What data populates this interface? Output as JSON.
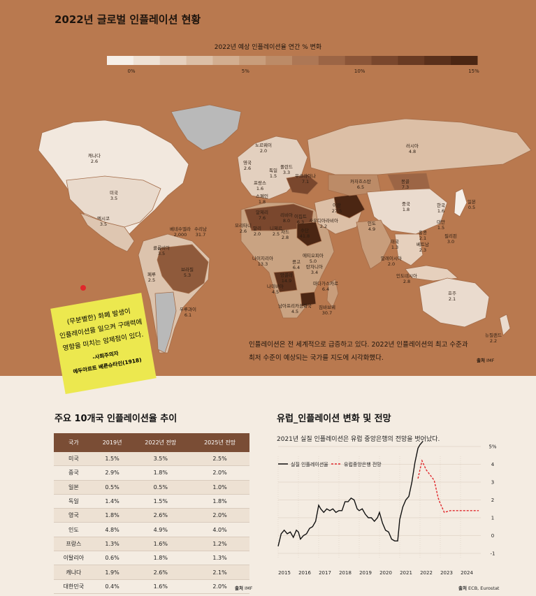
{
  "title": "2022년 글로벌 인플레이션 현황",
  "legend": {
    "title": "2022년 예상 인플레이션율 연간 % 변화",
    "ticks": [
      {
        "label": "0%",
        "v": 0
      },
      {
        "label": "5%",
        "v": 5
      },
      {
        "label": "10%",
        "v": 10
      },
      {
        "label": "15%",
        "v": 15
      }
    ],
    "colors": [
      "#f6efe8",
      "#efe1d4",
      "#e6d0bd",
      "#dcbfa6",
      "#d2ae90",
      "#c89d7b",
      "#bc8b67",
      "#ad7755",
      "#9c6545",
      "#8b5538",
      "#7a472d",
      "#6a3b23",
      "#5a301b",
      "#4b2613"
    ]
  },
  "map_labels": [
    {
      "name": "캐나다",
      "value": "2.6"
    },
    {
      "name": "미국",
      "value": "3.5"
    },
    {
      "name": "멕시코",
      "value": "3.5"
    },
    {
      "name": "베네수엘라",
      "value": "2,000"
    },
    {
      "name": "수리남",
      "value": "31.7"
    },
    {
      "name": "콜롬비아",
      "value": "3.5"
    },
    {
      "name": "페루",
      "value": "2.5"
    },
    {
      "name": "브라질",
      "value": "5.3"
    },
    {
      "name": "우루과이",
      "value": "6.1"
    },
    {
      "name": "노르웨이",
      "value": "2.0"
    },
    {
      "name": "영국",
      "value": "2.6"
    },
    {
      "name": "독일",
      "value": "1.5"
    },
    {
      "name": "폴란드",
      "value": "3.3"
    },
    {
      "name": "우크라이나",
      "value": "7.1"
    },
    {
      "name": "프랑스",
      "value": "1.6"
    },
    {
      "name": "스페인",
      "value": "1.8"
    },
    {
      "name": "모리타니",
      "value": "2.6"
    },
    {
      "name": "말리",
      "value": "2.0"
    },
    {
      "name": "니제르",
      "value": "2.5"
    },
    {
      "name": "알제리",
      "value": "7.6"
    },
    {
      "name": "리비아",
      "value": "8.0"
    },
    {
      "name": "이집트",
      "value": "6.3"
    },
    {
      "name": "차드",
      "value": "2.8"
    },
    {
      "name": "수단",
      "value": "41.8"
    },
    {
      "name": "사우디아라비아",
      "value": "2.2"
    },
    {
      "name": "이란",
      "value": "27.5"
    },
    {
      "name": "나이지리아",
      "value": "13.3"
    },
    {
      "name": "콩고",
      "value": "6.4"
    },
    {
      "name": "에티오피아",
      "value": "5.0"
    },
    {
      "name": "탄자니아",
      "value": "3.4"
    },
    {
      "name": "앙골라",
      "value": "14.9"
    },
    {
      "name": "나미비아",
      "value": "4.5"
    },
    {
      "name": "마다가스카르",
      "value": "6.4"
    },
    {
      "name": "남아프리카공화국",
      "value": "4.5"
    },
    {
      "name": "짐바브웨",
      "value": "30.7"
    },
    {
      "name": "러시아",
      "value": "4.8"
    },
    {
      "name": "카자흐스탄",
      "value": "6.5"
    },
    {
      "name": "몽골",
      "value": "7.3"
    },
    {
      "name": "중국",
      "value": "1.8"
    },
    {
      "name": "인도",
      "value": "4.9"
    },
    {
      "name": "한국",
      "value": "1.6"
    },
    {
      "name": "일본",
      "value": "0.5"
    },
    {
      "name": "대만",
      "value": "1.5"
    },
    {
      "name": "홍콩",
      "value": "2.1"
    },
    {
      "name": "필리핀",
      "value": "3.0"
    },
    {
      "name": "태국",
      "value": "1.3"
    },
    {
      "name": "베트남",
      "value": "2.3"
    },
    {
      "name": "말레이시아",
      "value": "2.0"
    },
    {
      "name": "인도네시아",
      "value": "2.8"
    },
    {
      "name": "호주",
      "value": "2.1"
    },
    {
      "name": "뉴질랜드",
      "value": "2.2"
    }
  ],
  "quote": {
    "lines": [
      "(무분별한) 화폐 발생이",
      "인플레이션을 일으켜 구매력에",
      "영향을 미치는 암제점이 있다."
    ],
    "author": "-사회주의자",
    "author2": "에두아르트 베른슈타인(1918)"
  },
  "caption": "인플레이션은 전 세계적으로 급증하고 있다. 2022년 인플레이션의 최고 수준과 최저 수준이 예상되는 국가를 지도에 시각화했다.",
  "source_map": {
    "label": "출처",
    "value": "IMF"
  },
  "table": {
    "title": "주요 10개국 인플레이션율 추이",
    "headers": [
      "국가",
      "2019년",
      "2022년 전망",
      "2025년 전망"
    ],
    "rows": [
      [
        "미국",
        "1.5%",
        "3.5%",
        "2.5%"
      ],
      [
        "중국",
        "2.9%",
        "1.8%",
        "2.0%"
      ],
      [
        "일본",
        "0.5%",
        "0.5%",
        "1.0%"
      ],
      [
        "독일",
        "1.4%",
        "1.5%",
        "1.8%"
      ],
      [
        "영국",
        "1.8%",
        "2.6%",
        "2.0%"
      ],
      [
        "인도",
        "4.8%",
        "4.9%",
        "4.0%"
      ],
      [
        "프랑스",
        "1.3%",
        "1.6%",
        "1.2%"
      ],
      [
        "이탈리아",
        "0.6%",
        "1.8%",
        "1.3%"
      ],
      [
        "캐나다",
        "1.9%",
        "2.6%",
        "2.1%"
      ],
      [
        "대한민국",
        "0.4%",
        "1.6%",
        "2.0%"
      ]
    ],
    "source": {
      "label": "출처",
      "value": "IMF"
    }
  },
  "chart_data": {
    "type": "line",
    "title": "유럽_인플레이션 변화 및 전망",
    "subtitle": "2021년 실질 인플레이션은 유럽 중앙은행의 전망을 벗어났다.",
    "x_ticks": [
      "2015",
      "2016",
      "2017",
      "2018",
      "2019",
      "2020",
      "2021",
      "2022",
      "2023",
      "2024"
    ],
    "y_ticks": [
      "5%",
      "4",
      "3",
      "2",
      "1",
      "0",
      "-1"
    ],
    "ylim": [
      -1,
      5
    ],
    "xlim": [
      2015,
      2025
    ],
    "series": [
      {
        "name": "실질 인플레이션율",
        "color": "#111111",
        "style": "solid",
        "x": [
          2015.0,
          2015.15,
          2015.3,
          2015.45,
          2015.6,
          2015.75,
          2015.9,
          2016.0,
          2016.1,
          2016.25,
          2016.4,
          2016.55,
          2016.7,
          2016.85,
          2017.0,
          2017.1,
          2017.25,
          2017.4,
          2017.55,
          2017.7,
          2017.85,
          2018.0,
          2018.15,
          2018.3,
          2018.45,
          2018.6,
          2018.75,
          2018.9,
          2019.0,
          2019.15,
          2019.3,
          2019.45,
          2019.6,
          2019.75,
          2019.9,
          2020.0,
          2020.15,
          2020.3,
          2020.45,
          2020.6,
          2020.75,
          2020.9,
          2021.0,
          2021.15,
          2021.3,
          2021.45,
          2021.6,
          2021.75,
          2021.9,
          2022.0,
          2022.15
        ],
        "y": [
          -0.6,
          0.1,
          0.3,
          0.1,
          0.2,
          -0.1,
          0.3,
          0.2,
          -0.2,
          0.0,
          0.1,
          0.4,
          0.5,
          0.8,
          1.7,
          1.5,
          1.3,
          1.5,
          1.4,
          1.5,
          1.3,
          1.4,
          1.4,
          1.9,
          1.9,
          2.1,
          2.0,
          1.5,
          1.4,
          1.5,
          1.2,
          1.0,
          1.0,
          0.8,
          1.0,
          1.3,
          0.7,
          0.3,
          0.2,
          -0.2,
          -0.3,
          -0.3,
          0.9,
          1.6,
          2.0,
          2.2,
          3.0,
          4.1,
          4.9,
          5.1,
          5.3
        ]
      },
      {
        "name": "유럽중앙은행 전망",
        "color": "#e0272b",
        "style": "dashed",
        "x": [
          2021.9,
          2022.1,
          2022.3,
          2022.5,
          2022.7,
          2022.9,
          2023.0,
          2023.2,
          2023.5,
          2024.0,
          2024.5,
          2024.9
        ],
        "y": [
          3.2,
          4.2,
          3.7,
          3.4,
          3.1,
          2.1,
          1.8,
          1.3,
          1.4,
          1.4,
          1.4,
          1.4
        ]
      }
    ],
    "source": {
      "label": "출처",
      "value": "ECB, Eurostat"
    }
  }
}
